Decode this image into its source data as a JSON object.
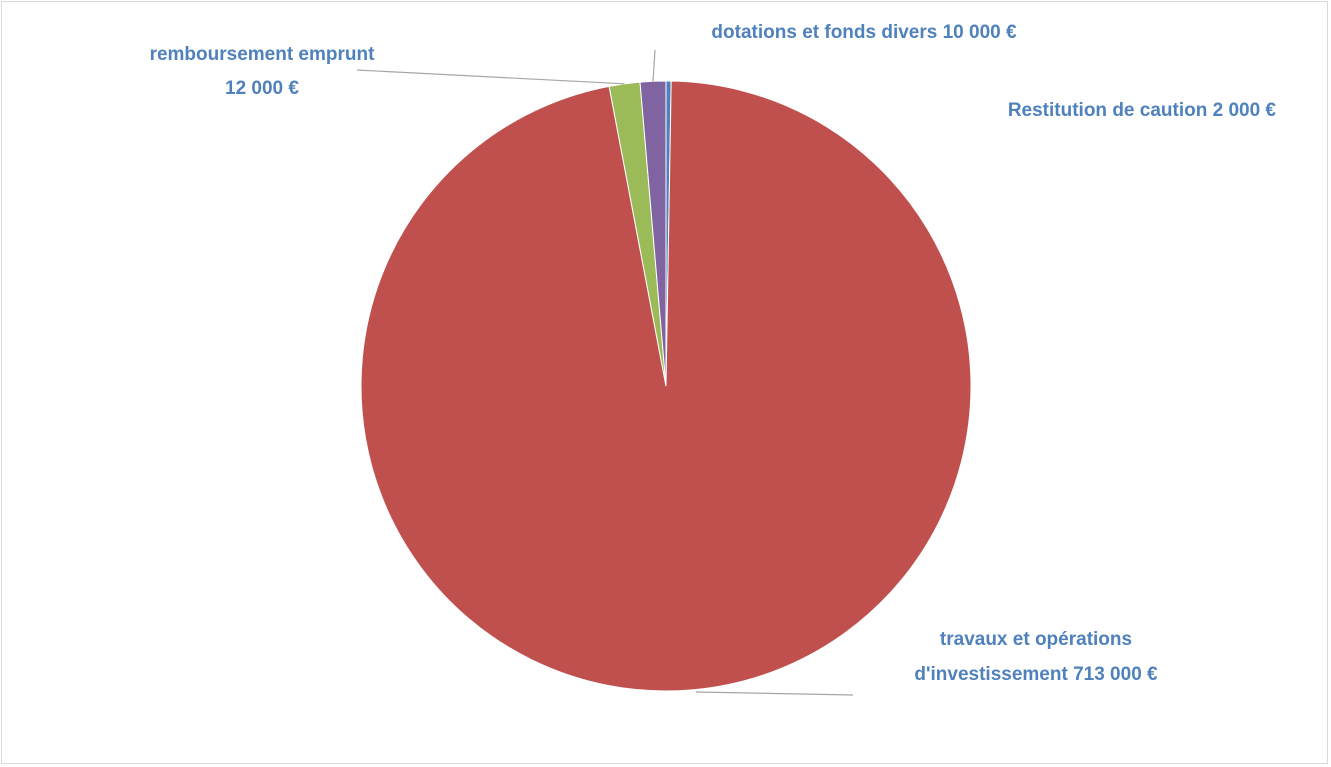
{
  "chart_data": {
    "type": "pie",
    "title": "",
    "categories": [
      "Restitution de caution",
      "travaux et opérations d'investissement",
      "remboursement emprunt",
      "dotations et fonds divers"
    ],
    "values": [
      2000,
      713000,
      12000,
      10000
    ],
    "colors": [
      "#4f81bd",
      "#c0504d",
      "#9bbb59",
      "#8064a2"
    ],
    "label_color": "#4f81bd",
    "legend": "none",
    "labels": {
      "restitution": "Restitution de caution 2 000 €",
      "travaux_line1": "travaux et opérations",
      "travaux_line2": "d'investissement 713 000 €",
      "remboursement_line1": "remboursement emprunt",
      "remboursement_line2": "12 000 €",
      "dotations": "dotations et fonds divers 10 000 €"
    }
  }
}
